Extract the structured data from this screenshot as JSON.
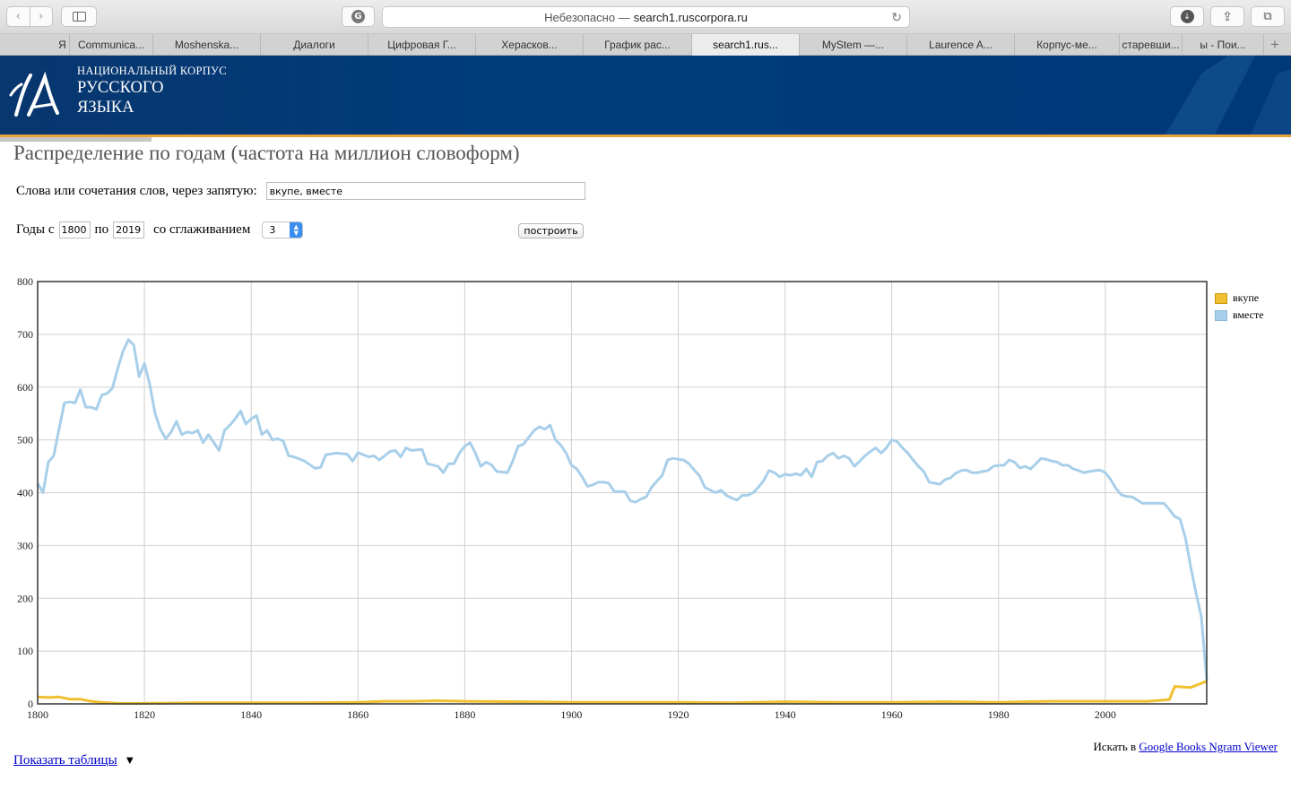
{
  "browser": {
    "address_prefix": "Небезопасно —",
    "address_domain": "search1.ruscorpora.ru",
    "tabs": [
      {
        "label": "Я",
        "active": false
      },
      {
        "label": "Communica...",
        "active": false
      },
      {
        "label": "Moshenska...",
        "active": false
      },
      {
        "label": "Диалоги",
        "active": false
      },
      {
        "label": "Цифровая Г...",
        "active": false
      },
      {
        "label": "Херасков...",
        "active": false
      },
      {
        "label": "График рас...",
        "active": false
      },
      {
        "label": "search1.rus...",
        "active": true
      },
      {
        "label": "MyStem —...",
        "active": false
      },
      {
        "label": "Laurence A...",
        "active": false
      },
      {
        "label": "Корпус-ме...",
        "active": false
      },
      {
        "label": "старевши...",
        "active": false
      },
      {
        "label": "ы - Пои...",
        "active": false
      }
    ],
    "new_tab": "+"
  },
  "header": {
    "line1": "НАЦИОНАЛЬНЫЙ КОРПУС",
    "line2": "РУССКОГО",
    "line3": "ЯЗЫКА"
  },
  "page": {
    "title": "Распределение по годам (частота на миллион словоформ)",
    "words_label": "Слова или сочетания слов, через запятую:",
    "words_value": "вкупе, вместе",
    "years_from_label": "Годы с",
    "year_from": "1800",
    "years_to_label": "по",
    "year_to": "2019",
    "smoothing_label": "со сглаживанием",
    "smoothing_value": "3",
    "build_button": "построить",
    "search_in_label": "Искать в",
    "ngram_link": "Google Books Ngram Viewer",
    "show_tables": "Показать таблицы",
    "show_tables_arrow": "▼"
  },
  "chart_data": {
    "type": "line",
    "xlim": [
      1800,
      2019
    ],
    "ylim": [
      0,
      800
    ],
    "x_ticks": [
      "1800",
      "1820",
      "1840",
      "1860",
      "1880",
      "1900",
      "1920",
      "1940",
      "1960",
      "1980",
      "2000"
    ],
    "y_ticks": [
      "0",
      "100",
      "200",
      "300",
      "400",
      "500",
      "600",
      "700",
      "800"
    ],
    "grid": true,
    "legend_position": "right",
    "series": [
      {
        "name": "вкупе",
        "color": "#f0c030",
        "points": [
          [
            1800,
            13
          ],
          [
            1802,
            12
          ],
          [
            1804,
            13
          ],
          [
            1806,
            9
          ],
          [
            1808,
            9
          ],
          [
            1810,
            5
          ],
          [
            1812,
            3
          ],
          [
            1815,
            1
          ],
          [
            1820,
            1
          ],
          [
            1830,
            2
          ],
          [
            1840,
            2
          ],
          [
            1850,
            2
          ],
          [
            1860,
            3
          ],
          [
            1865,
            5
          ],
          [
            1870,
            5
          ],
          [
            1875,
            6
          ],
          [
            1880,
            5
          ],
          [
            1890,
            4
          ],
          [
            1900,
            3
          ],
          [
            1910,
            3
          ],
          [
            1920,
            3
          ],
          [
            1930,
            2
          ],
          [
            1940,
            4
          ],
          [
            1950,
            3
          ],
          [
            1960,
            3
          ],
          [
            1970,
            4
          ],
          [
            1980,
            3
          ],
          [
            1990,
            5
          ],
          [
            2000,
            5
          ],
          [
            2008,
            5
          ],
          [
            2012,
            8
          ],
          [
            2013,
            33
          ],
          [
            2016,
            31
          ],
          [
            2019,
            43
          ]
        ]
      },
      {
        "name": "вместе",
        "color": "#a8cfea",
        "points": [
          [
            1800,
            418
          ],
          [
            1801,
            400
          ],
          [
            1802,
            458
          ],
          [
            1803,
            470
          ],
          [
            1804,
            520
          ],
          [
            1805,
            570
          ],
          [
            1806,
            572
          ],
          [
            1807,
            570
          ],
          [
            1808,
            595
          ],
          [
            1809,
            562
          ],
          [
            1810,
            562
          ],
          [
            1811,
            558
          ],
          [
            1812,
            585
          ],
          [
            1813,
            588
          ],
          [
            1814,
            598
          ],
          [
            1815,
            635
          ],
          [
            1816,
            668
          ],
          [
            1817,
            690
          ],
          [
            1818,
            680
          ],
          [
            1819,
            620
          ],
          [
            1820,
            645
          ],
          [
            1821,
            605
          ],
          [
            1822,
            550
          ],
          [
            1823,
            520
          ],
          [
            1824,
            502
          ],
          [
            1825,
            515
          ],
          [
            1826,
            535
          ],
          [
            1827,
            510
          ],
          [
            1828,
            515
          ],
          [
            1829,
            513
          ],
          [
            1830,
            518
          ],
          [
            1831,
            495
          ],
          [
            1832,
            510
          ],
          [
            1833,
            495
          ],
          [
            1834,
            480
          ],
          [
            1835,
            518
          ],
          [
            1836,
            528
          ],
          [
            1837,
            540
          ],
          [
            1838,
            555
          ],
          [
            1839,
            530
          ],
          [
            1840,
            540
          ],
          [
            1841,
            546
          ],
          [
            1842,
            510
          ],
          [
            1843,
            518
          ],
          [
            1844,
            500
          ],
          [
            1845,
            502
          ],
          [
            1846,
            498
          ],
          [
            1847,
            470
          ],
          [
            1848,
            468
          ],
          [
            1850,
            460
          ],
          [
            1852,
            446
          ],
          [
            1853,
            448
          ],
          [
            1854,
            472
          ],
          [
            1856,
            475
          ],
          [
            1858,
            473
          ],
          [
            1859,
            460
          ],
          [
            1860,
            476
          ],
          [
            1862,
            468
          ],
          [
            1863,
            470
          ],
          [
            1864,
            462
          ],
          [
            1866,
            478
          ],
          [
            1867,
            480
          ],
          [
            1868,
            468
          ],
          [
            1869,
            485
          ],
          [
            1870,
            480
          ],
          [
            1872,
            482
          ],
          [
            1873,
            455
          ],
          [
            1875,
            450
          ],
          [
            1876,
            438
          ],
          [
            1877,
            455
          ],
          [
            1878,
            455
          ],
          [
            1879,
            475
          ],
          [
            1880,
            488
          ],
          [
            1881,
            495
          ],
          [
            1882,
            475
          ],
          [
            1883,
            450
          ],
          [
            1884,
            458
          ],
          [
            1885,
            453
          ],
          [
            1886,
            440
          ],
          [
            1888,
            438
          ],
          [
            1889,
            460
          ],
          [
            1890,
            488
          ],
          [
            1891,
            492
          ],
          [
            1892,
            505
          ],
          [
            1893,
            518
          ],
          [
            1894,
            525
          ],
          [
            1895,
            520
          ],
          [
            1896,
            528
          ],
          [
            1897,
            500
          ],
          [
            1898,
            490
          ],
          [
            1899,
            475
          ],
          [
            1900,
            452
          ],
          [
            1901,
            445
          ],
          [
            1902,
            430
          ],
          [
            1903,
            412
          ],
          [
            1904,
            415
          ],
          [
            1905,
            420
          ],
          [
            1906,
            420
          ],
          [
            1907,
            418
          ],
          [
            1908,
            402
          ],
          [
            1910,
            402
          ],
          [
            1911,
            385
          ],
          [
            1912,
            382
          ],
          [
            1913,
            388
          ],
          [
            1914,
            392
          ],
          [
            1915,
            410
          ],
          [
            1916,
            422
          ],
          [
            1917,
            433
          ],
          [
            1918,
            462
          ],
          [
            1919,
            465
          ],
          [
            1921,
            462
          ],
          [
            1922,
            455
          ],
          [
            1923,
            443
          ],
          [
            1924,
            432
          ],
          [
            1925,
            410
          ],
          [
            1926,
            405
          ],
          [
            1927,
            400
          ],
          [
            1928,
            405
          ],
          [
            1929,
            395
          ],
          [
            1930,
            390
          ],
          [
            1931,
            386
          ],
          [
            1932,
            395
          ],
          [
            1933,
            395
          ],
          [
            1934,
            400
          ],
          [
            1935,
            410
          ],
          [
            1936,
            423
          ],
          [
            1937,
            442
          ],
          [
            1938,
            438
          ],
          [
            1939,
            430
          ],
          [
            1940,
            435
          ],
          [
            1941,
            433
          ],
          [
            1942,
            436
          ],
          [
            1943,
            433
          ],
          [
            1944,
            445
          ],
          [
            1945,
            430
          ],
          [
            1946,
            458
          ],
          [
            1947,
            460
          ],
          [
            1948,
            470
          ],
          [
            1949,
            475
          ],
          [
            1950,
            465
          ],
          [
            1951,
            470
          ],
          [
            1952,
            465
          ],
          [
            1953,
            450
          ],
          [
            1954,
            460
          ],
          [
            1955,
            470
          ],
          [
            1956,
            478
          ],
          [
            1957,
            485
          ],
          [
            1958,
            475
          ],
          [
            1959,
            485
          ],
          [
            1960,
            500
          ],
          [
            1961,
            497
          ],
          [
            1962,
            485
          ],
          [
            1963,
            475
          ],
          [
            1964,
            462
          ],
          [
            1965,
            450
          ],
          [
            1966,
            440
          ],
          [
            1967,
            420
          ],
          [
            1968,
            418
          ],
          [
            1969,
            416
          ],
          [
            1970,
            425
          ],
          [
            1971,
            428
          ],
          [
            1972,
            437
          ],
          [
            1973,
            442
          ],
          [
            1974,
            443
          ],
          [
            1975,
            438
          ],
          [
            1976,
            438
          ],
          [
            1977,
            440
          ],
          [
            1978,
            442
          ],
          [
            1979,
            450
          ],
          [
            1980,
            452
          ],
          [
            1981,
            452
          ],
          [
            1982,
            462
          ],
          [
            1983,
            458
          ],
          [
            1984,
            447
          ],
          [
            1985,
            450
          ],
          [
            1986,
            445
          ],
          [
            1987,
            455
          ],
          [
            1988,
            465
          ],
          [
            1989,
            463
          ],
          [
            1990,
            460
          ],
          [
            1991,
            458
          ],
          [
            1992,
            452
          ],
          [
            1993,
            452
          ],
          [
            1994,
            445
          ],
          [
            1995,
            442
          ],
          [
            1996,
            438
          ],
          [
            1997,
            440
          ],
          [
            1998,
            442
          ],
          [
            1999,
            443
          ],
          [
            2000,
            438
          ],
          [
            2001,
            425
          ],
          [
            2002,
            408
          ],
          [
            2003,
            396
          ],
          [
            2004,
            393
          ],
          [
            2005,
            392
          ],
          [
            2006,
            386
          ],
          [
            2007,
            380
          ],
          [
            2008,
            380
          ],
          [
            2009,
            380
          ],
          [
            2010,
            380
          ],
          [
            2011,
            380
          ],
          [
            2012,
            368
          ],
          [
            2013,
            355
          ],
          [
            2014,
            350
          ],
          [
            2015,
            315
          ],
          [
            2016,
            260
          ],
          [
            2017,
            210
          ],
          [
            2018,
            165
          ],
          [
            2019,
            45
          ]
        ]
      }
    ]
  }
}
